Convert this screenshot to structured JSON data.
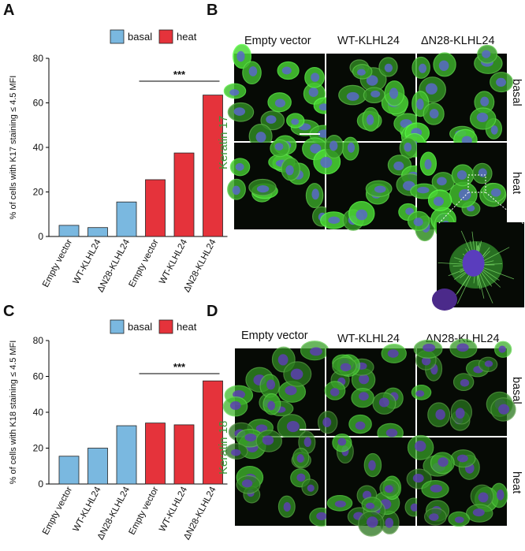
{
  "panels": {
    "a": "A",
    "b": "B",
    "c": "C",
    "d": "D"
  },
  "colors": {
    "basal": "#7ab8e0",
    "heat": "#e5333b",
    "keratin_green": "#3a9a3a"
  },
  "chart_data": [
    {
      "type": "bar",
      "panel": "A",
      "ylabel": "% of cells with K17 staining ≤ 4.5 MFI",
      "ylim": [
        0,
        80
      ],
      "yticks": [
        0,
        20,
        40,
        60,
        80
      ],
      "categories": [
        "Empty vector",
        "WT-KLHL24",
        "ΔN28-KLHL24",
        "Empty vector",
        "WT-KLHL24",
        "ΔN28-KLHL24"
      ],
      "values": [
        5,
        4,
        15.5,
        25.5,
        37.5,
        63.5
      ],
      "groups": [
        "basal",
        "basal",
        "basal",
        "heat",
        "heat",
        "heat"
      ],
      "legend": [
        "basal",
        "heat"
      ],
      "significance": "***"
    },
    {
      "type": "bar",
      "panel": "C",
      "ylabel": "% of cells with K18 staining ≤ 4.5 MFI",
      "ylim": [
        0,
        80
      ],
      "yticks": [
        0,
        20,
        40,
        60,
        80
      ],
      "categories": [
        "Empty vector",
        "WT-KLHL24",
        "ΔN28-KLHL24",
        "Empty vector",
        "WT-KLHL24",
        "ΔN28-KLHL24"
      ],
      "values": [
        15.5,
        20,
        32.5,
        34,
        33,
        57.5
      ],
      "groups": [
        "basal",
        "basal",
        "basal",
        "heat",
        "heat",
        "heat"
      ],
      "legend": [
        "basal",
        "heat"
      ],
      "significance": "***"
    }
  ],
  "micrographs": {
    "b": {
      "stain": "Keratin 17",
      "columns": [
        "Empty vector",
        "WT-KLHL24",
        "ΔN28-KLHL24"
      ],
      "rows": [
        "basal",
        "heat"
      ]
    },
    "d": {
      "stain": "Keratin 18",
      "columns": [
        "Empty vector",
        "WT-KLHL24",
        "ΔN28-KLHL24"
      ],
      "rows": [
        "basal",
        "heat"
      ]
    }
  }
}
